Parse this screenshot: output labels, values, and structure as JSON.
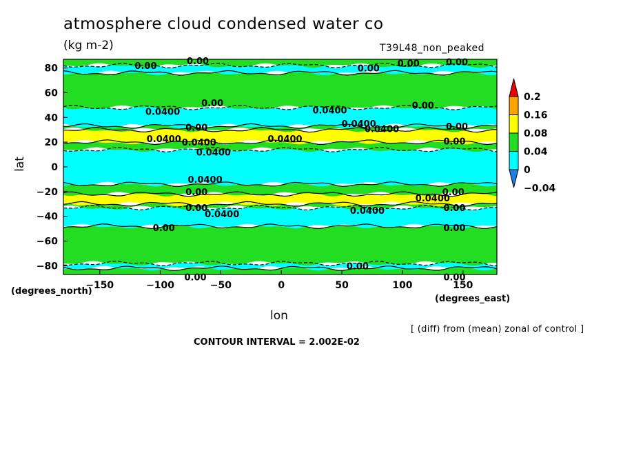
{
  "header": {
    "title": "atmosphere cloud condensed water co",
    "units": "(kg m-2)",
    "run_name": "T39L48_non_peaked"
  },
  "footer": {
    "diff_note": "[ (diff) from (mean) zonal of control ]",
    "contour_interval": "CONTOUR INTERVAL = 2.002E-02"
  },
  "chart_data": {
    "type": "heatmap",
    "title": "atmosphere cloud condensed water co",
    "xlabel": "lon",
    "ylabel": "lat",
    "x_units": "(degrees_east)",
    "y_units": "(degrees_north)",
    "xlim": [
      -180,
      178
    ],
    "ylim": [
      -87,
      87
    ],
    "x_ticks": [
      -150,
      -100,
      -50,
      0,
      50,
      100,
      150
    ],
    "y_ticks": [
      -80,
      -60,
      -40,
      -20,
      0,
      20,
      40,
      60,
      80
    ],
    "grid": false,
    "colorbar": {
      "levels": [
        -0.04,
        0,
        0.04,
        0.08,
        0.16,
        0.2
      ],
      "labels": [
        "-0.04",
        "0",
        "0.04",
        "0.08",
        "0.16",
        "0.2"
      ],
      "colors": [
        "#1E7FE6",
        "#00FFFF",
        "#22DD22",
        "#FFFF00",
        "#FFA500",
        "#EE0000"
      ],
      "under_color": "#1E7FE6",
      "over_color": "#EE0000"
    },
    "bands": [
      {
        "lat_min": -87,
        "lat_max": -82,
        "level": "0 to 0.04"
      },
      {
        "lat_min": -82,
        "lat_max": -78,
        "level": "-0.04 to 0"
      },
      {
        "lat_min": -78,
        "lat_max": -48,
        "level": "0 to 0.04"
      },
      {
        "lat_min": -48,
        "lat_max": -33,
        "level": "-0.04 to 0"
      },
      {
        "lat_min": -33,
        "lat_max": -30,
        "level": "0 to 0.04"
      },
      {
        "lat_min": -30,
        "lat_max": -22,
        "level": "0.04 to 0.08"
      },
      {
        "lat_min": -22,
        "lat_max": -14,
        "level": "0 to 0.04"
      },
      {
        "lat_min": -14,
        "lat_max": 14,
        "level": "-0.04 to 0"
      },
      {
        "lat_min": 14,
        "lat_max": 20,
        "level": "0 to 0.04"
      },
      {
        "lat_min": 20,
        "lat_max": 30,
        "level": "0.04 to 0.08"
      },
      {
        "lat_min": 30,
        "lat_max": 33,
        "level": "0 to 0.04"
      },
      {
        "lat_min": 33,
        "lat_max": 48,
        "level": "-0.04 to 0"
      },
      {
        "lat_min": 48,
        "lat_max": 76,
        "level": "0 to 0.04"
      },
      {
        "lat_min": 76,
        "lat_max": 82,
        "level": "-0.04 to 0"
      },
      {
        "lat_min": 82,
        "lat_max": 87,
        "level": "0 to 0.04"
      }
    ],
    "contour_labels": [
      {
        "text": "0.00",
        "lon": -112,
        "lat": 82
      },
      {
        "text": "0.00",
        "lon": -69,
        "lat": 86
      },
      {
        "text": "0.00",
        "lon": 72,
        "lat": 80
      },
      {
        "text": "0.00",
        "lon": 105,
        "lat": 84
      },
      {
        "text": "0.00",
        "lon": 145,
        "lat": 85
      },
      {
        "text": "0.00",
        "lon": -57,
        "lat": 52
      },
      {
        "text": "0.00",
        "lon": 117,
        "lat": 50
      },
      {
        "text": "0.0400",
        "lon": -98,
        "lat": 45
      },
      {
        "text": "0.0400",
        "lon": 40,
        "lat": 46
      },
      {
        "text": "0.0400",
        "lon": 64,
        "lat": 35
      },
      {
        "text": "0.0400",
        "lon": 83,
        "lat": 31
      },
      {
        "text": "0.00",
        "lon": -70,
        "lat": 32
      },
      {
        "text": "0.00",
        "lon": 145,
        "lat": 33
      },
      {
        "text": "0.0400",
        "lon": -97,
        "lat": 23
      },
      {
        "text": "0.0400",
        "lon": -68,
        "lat": 20
      },
      {
        "text": "0.0400",
        "lon": 3,
        "lat": 23
      },
      {
        "text": "0.00",
        "lon": 143,
        "lat": 21
      },
      {
        "text": "0.0400",
        "lon": -56,
        "lat": 12
      },
      {
        "text": "0.0400",
        "lon": -63,
        "lat": -10
      },
      {
        "text": "0.00",
        "lon": -70,
        "lat": -20
      },
      {
        "text": "0.00",
        "lon": 142,
        "lat": -20
      },
      {
        "text": "0.0400",
        "lon": 125,
        "lat": -25
      },
      {
        "text": "0.00",
        "lon": -70,
        "lat": -33
      },
      {
        "text": "0.00",
        "lon": 143,
        "lat": -33
      },
      {
        "text": "0.0400",
        "lon": -49,
        "lat": -38
      },
      {
        "text": "0.0400",
        "lon": 71,
        "lat": -35
      },
      {
        "text": "0.00",
        "lon": -97,
        "lat": -49
      },
      {
        "text": "0.00",
        "lon": 143,
        "lat": -49
      },
      {
        "text": "0.00",
        "lon": 63,
        "lat": -80
      },
      {
        "text": "0.00",
        "lon": -71,
        "lat": -89
      },
      {
        "text": "0.00",
        "lon": 143,
        "lat": -89
      }
    ]
  }
}
